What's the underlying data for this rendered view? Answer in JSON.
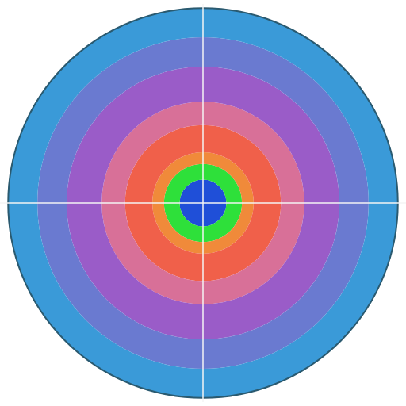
{
  "chart_data": {
    "type": "barpolar",
    "stacked": true,
    "tick_labels": false,
    "grid": false,
    "ylim": [
      0,
      1
    ],
    "values": [
      0.12,
      0.08,
      0.06,
      0.14,
      0.12,
      0.18,
      0.15,
      0.15
    ],
    "colors": [
      "#1f4fd8",
      "#2ee03a",
      "#f08a3a",
      "#f0604a",
      "#d87098",
      "#9a5cc8",
      "#6a7ad0",
      "#3a9ad8"
    ]
  }
}
